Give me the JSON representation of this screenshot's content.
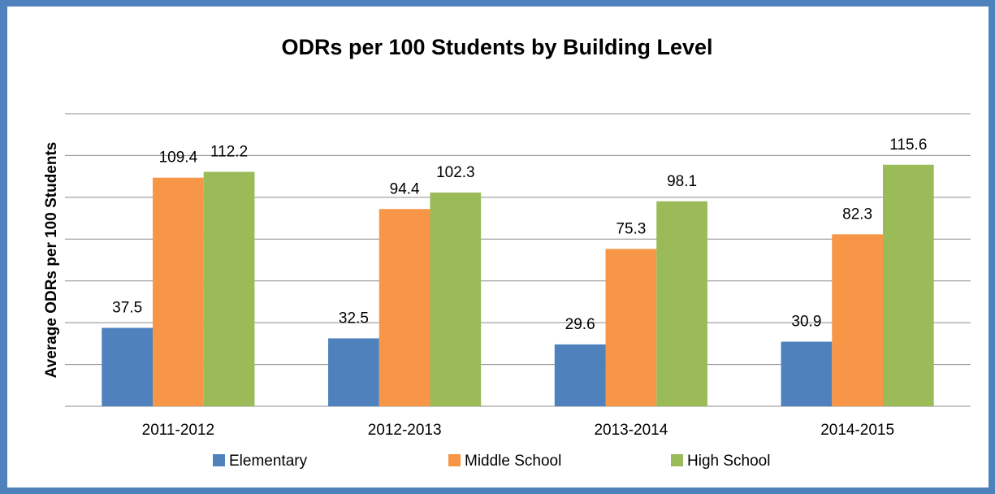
{
  "chart_data": {
    "type": "bar",
    "title": "ODRs per 100 Students by Building Level",
    "y_label": "Average ODRs per 100 Students",
    "categories": [
      "2011-2012",
      "2012-2013",
      "2013-2014",
      "2014-2015"
    ],
    "series": [
      {
        "name": "Elementary",
        "color": "#4f81bd",
        "values": [
          37.5,
          32.5,
          29.6,
          30.9
        ]
      },
      {
        "name": "Middle School",
        "color": "#f79646",
        "values": [
          109.4,
          94.4,
          75.3,
          82.3
        ]
      },
      {
        "name": "High School",
        "color": "#9bbb59",
        "values": [
          112.2,
          102.3,
          98.1,
          115.6
        ]
      }
    ],
    "ylim": [
      0,
      140
    ],
    "yticks": [
      0,
      20,
      40,
      60,
      80,
      100,
      120,
      140
    ],
    "grid": true
  }
}
